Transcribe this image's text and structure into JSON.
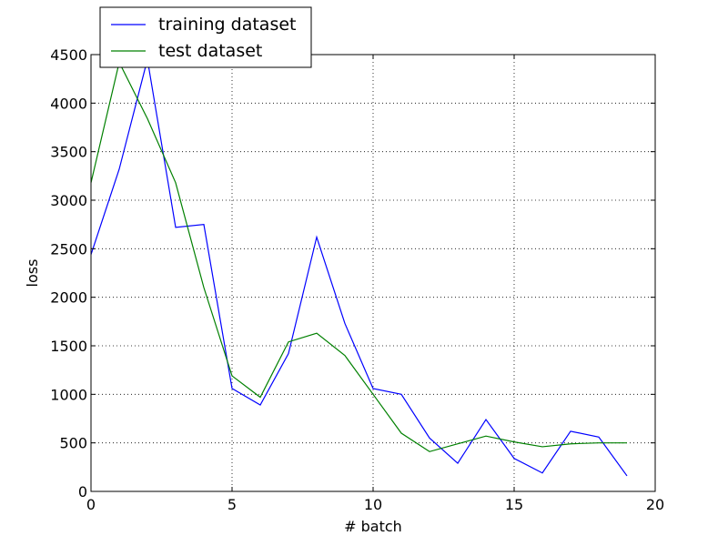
{
  "chart_data": {
    "type": "line",
    "xlabel": "# batch",
    "ylabel": "loss",
    "xlim": [
      0,
      20
    ],
    "ylim": [
      0,
      4500
    ],
    "xticks": [
      "0",
      "5",
      "10",
      "15",
      "20"
    ],
    "yticks": [
      "0",
      "500",
      "1000",
      "1500",
      "2000",
      "2500",
      "3000",
      "3500",
      "4000",
      "4500"
    ],
    "grid": true,
    "legend_position": "top-left",
    "x": [
      0,
      1,
      2,
      3,
      4,
      5,
      6,
      7,
      8,
      9,
      10,
      11,
      12,
      13,
      14,
      15,
      16,
      17,
      18,
      19
    ],
    "series": [
      {
        "name": "training dataset",
        "color": "#0000ff",
        "values": [
          2440,
          3320,
          4450,
          2720,
          2750,
          1060,
          890,
          1420,
          2620,
          1730,
          1060,
          1000,
          550,
          290,
          740,
          340,
          190,
          620,
          560,
          160
        ]
      },
      {
        "name": "test dataset",
        "color": "#008000",
        "values": [
          3180,
          4420,
          3840,
          3180,
          2100,
          1190,
          970,
          1540,
          1630,
          1400,
          1000,
          600,
          410,
          490,
          570,
          510,
          460,
          490,
          500,
          500
        ]
      }
    ]
  }
}
